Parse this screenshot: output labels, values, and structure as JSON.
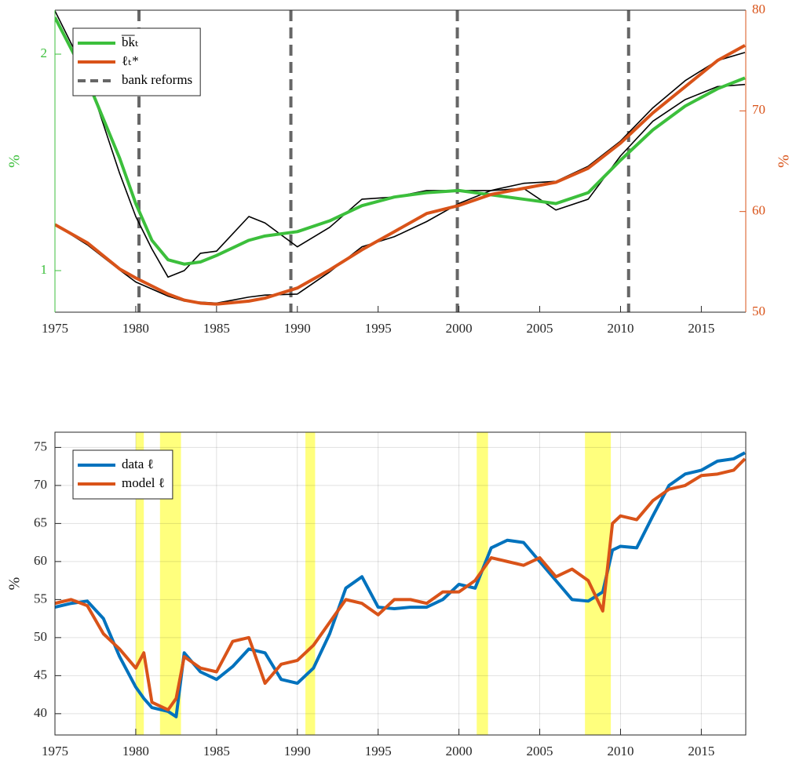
{
  "chart_data": [
    {
      "type": "line",
      "xlim": [
        1975,
        2017.75
      ],
      "xticks": [
        1975,
        1980,
        1985,
        1990,
        1995,
        2000,
        2005,
        2010,
        2015
      ],
      "ylim": [
        0.808,
        2.203
      ],
      "yticks": [
        1,
        2
      ],
      "ylabel": "%",
      "y_color": "#3cbf3c",
      "y2lim": [
        50,
        80
      ],
      "y2ticks": [
        50,
        60,
        70,
        80
      ],
      "y2label": "%",
      "y2_color": "#d95319",
      "legend": "upper left",
      "x": [
        1975,
        1977,
        1979,
        1980,
        1981,
        1982,
        1983,
        1984,
        1985,
        1987,
        1988,
        1990,
        1992,
        1994,
        1996,
        1998,
        2000,
        2002,
        2004,
        2006,
        2008,
        2010,
        2012,
        2014,
        2016,
        2017.7
      ],
      "series": [
        {
          "color": "#000000",
          "values": [
            2.2,
            1.9,
            1.45,
            1.25,
            1.1,
            0.97,
            1.0,
            1.08,
            1.09,
            1.25,
            1.22,
            1.11,
            1.2,
            1.33,
            1.34,
            1.37,
            1.37,
            1.37,
            1.38,
            1.28,
            1.33,
            1.53,
            1.69,
            1.79,
            1.85,
            1.86
          ]
        },
        {
          "color": "#000000",
          "axis": "y2",
          "values": [
            58.7,
            56.7,
            54.2,
            53,
            52.3,
            51.6,
            51.1,
            51,
            50.9,
            51.5,
            51.7,
            51.8,
            54,
            56.5,
            57.5,
            59,
            60.8,
            62.1,
            62.8,
            63,
            64.5,
            67,
            70.3,
            73,
            75,
            75.8
          ]
        },
        {
          "name": "b̅k̅ₜ",
          "color": "#3cbf3c",
          "values": [
            2.17,
            1.88,
            1.52,
            1.31,
            1.14,
            1.05,
            1.03,
            1.04,
            1.07,
            1.14,
            1.16,
            1.18,
            1.23,
            1.3,
            1.34,
            1.36,
            1.37,
            1.35,
            1.33,
            1.31,
            1.36,
            1.51,
            1.65,
            1.76,
            1.84,
            1.89
          ]
        },
        {
          "name": "ℓₜ*",
          "color": "#d95319",
          "axis": "y2",
          "values": [
            58.7,
            56.9,
            54.3,
            53.4,
            52.6,
            51.8,
            51.2,
            50.9,
            50.8,
            51.1,
            51.4,
            52.4,
            54.2,
            56.2,
            58,
            59.8,
            60.6,
            61.7,
            62.3,
            62.9,
            64.3,
            66.8,
            69.8,
            72.4,
            75,
            76.5
          ]
        }
      ],
      "reference_lines": {
        "name": "bank reforms",
        "color": "#666666",
        "x": [
          1980.2,
          1989.6,
          1999.9,
          2010.5
        ]
      }
    },
    {
      "type": "line",
      "xlim": [
        1975,
        2017.75
      ],
      "xticks": [
        1975,
        1980,
        1985,
        1990,
        1995,
        2000,
        2005,
        2010,
        2015
      ],
      "ylim": [
        37.2,
        77
      ],
      "yticks": [
        40,
        45,
        50,
        55,
        60,
        65,
        70,
        75
      ],
      "ylabel": "%",
      "grid": true,
      "legend": "upper left",
      "shaded_ranges": {
        "color": "#ffff66",
        "ranges": [
          [
            1980,
            1980.5
          ],
          [
            1981.5,
            1982.8
          ],
          [
            1990.5,
            1991.1
          ],
          [
            2001.1,
            2001.8
          ],
          [
            2007.8,
            2009.4
          ]
        ]
      },
      "x": [
        1975,
        1976,
        1977,
        1978,
        1979,
        1980,
        1980.5,
        1981,
        1982,
        1982.5,
        1983,
        1984,
        1985,
        1986,
        1987,
        1988,
        1989,
        1990,
        1991,
        1992,
        1993,
        1994,
        1995,
        1996,
        1997,
        1998,
        1999,
        2000,
        2001,
        2002,
        2003,
        2004,
        2005,
        2006,
        2007,
        2008,
        2008.9,
        2009.5,
        2010,
        2011,
        2012,
        2013,
        2014,
        2015,
        2016,
        2017,
        2017.7
      ],
      "series": [
        {
          "name": "data ℓ",
          "color": "#0072bd",
          "values": [
            54,
            54.5,
            54.8,
            52.5,
            47.5,
            43.5,
            42,
            40.8,
            40.3,
            39.6,
            48,
            45.5,
            44.5,
            46.2,
            48.5,
            48,
            44.5,
            44,
            46,
            50.5,
            56.5,
            58,
            54,
            53.8,
            54,
            54,
            55,
            57,
            56.5,
            61.8,
            62.8,
            62.5,
            60,
            57.5,
            55,
            54.8,
            56,
            61.5,
            62,
            61.8,
            66,
            70,
            71.5,
            72,
            73.2,
            73.5,
            74.3
          ]
        },
        {
          "name": "model ℓ",
          "color": "#d95319",
          "values": [
            54.5,
            55,
            54.2,
            50.5,
            48.5,
            46,
            48,
            41.5,
            40.5,
            42,
            47.5,
            46,
            45.5,
            49.5,
            50,
            44,
            46.5,
            47,
            49,
            52,
            55,
            54.5,
            53,
            55,
            55,
            54.5,
            56,
            56,
            57.5,
            60.5,
            60,
            59.5,
            60.5,
            58,
            59,
            57.5,
            53.5,
            65,
            66,
            65.5,
            68,
            69.5,
            70,
            71.3,
            71.5,
            72,
            73.5
          ]
        }
      ]
    }
  ]
}
